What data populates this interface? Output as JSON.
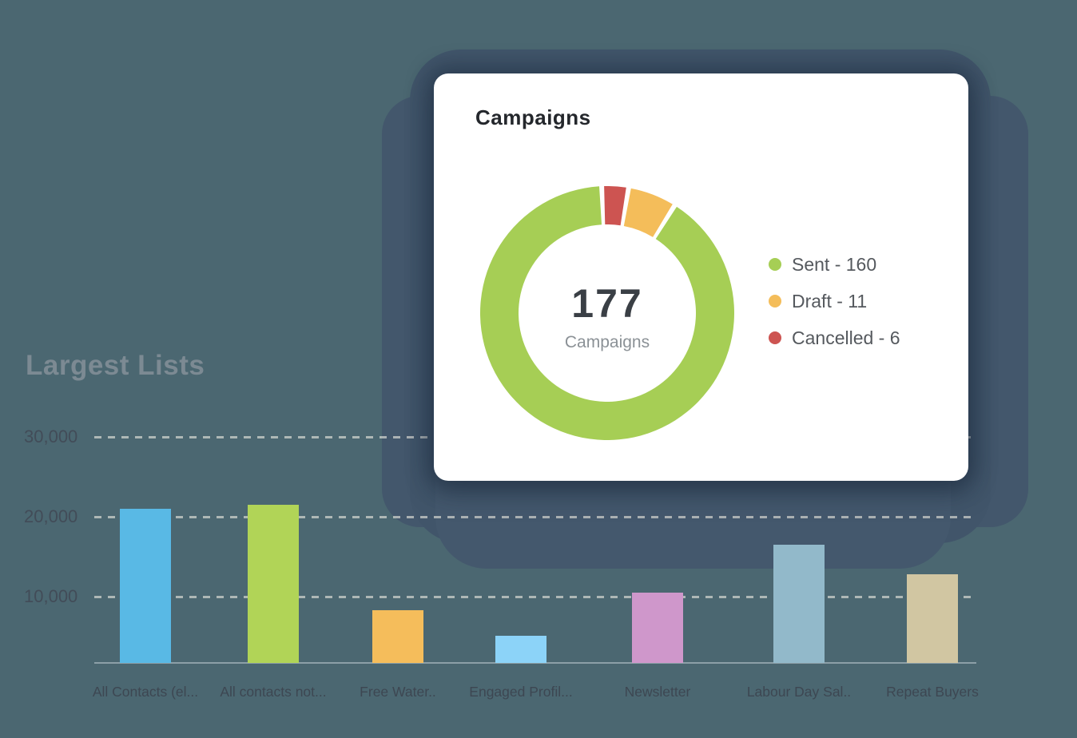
{
  "page": {
    "background_color": "#4B6771",
    "blob_color": "#43576C",
    "card_color": "#FFFFFF"
  },
  "chart_data": [
    {
      "type": "pie",
      "donut": true,
      "title": "Campaigns",
      "labels": [
        "Sent",
        "Draft",
        "Cancelled"
      ],
      "values": [
        160,
        11,
        6
      ],
      "colors": [
        "#A6CE55",
        "#F4BD5A",
        "#CD5451"
      ],
      "center_total": "177",
      "center_label": "Campaigns",
      "legend_position": "right",
      "legend_separator": " - ",
      "start_angle_deg": -2.5,
      "segment_gap_deg": 2.2
    },
    {
      "type": "bar",
      "title": "Largest Lists",
      "categories": [
        "All Contacts (el...",
        "All contacts not...",
        "Free Water..",
        "Engaged Profil...",
        "Newsletter",
        "Labour Day Sal..",
        "Repeat Buyers"
      ],
      "values": [
        21000,
        21500,
        8300,
        5100,
        10500,
        16500,
        12800
      ],
      "colors": [
        "#59B9E5",
        "#B1D457",
        "#F5BD5B",
        "#8CD3F8",
        "#CF97CB",
        "#92B9CA",
        "#D1C6A2"
      ],
      "y_ticks": [
        {
          "label": "30,000",
          "value": 30000
        },
        {
          "label": "20,000",
          "value": 20000
        },
        {
          "label": "10,000",
          "value": 10000
        }
      ],
      "ylim": [
        0,
        33000
      ],
      "grid": "horizontal-dashed",
      "xlabel": "",
      "ylabel": ""
    }
  ]
}
